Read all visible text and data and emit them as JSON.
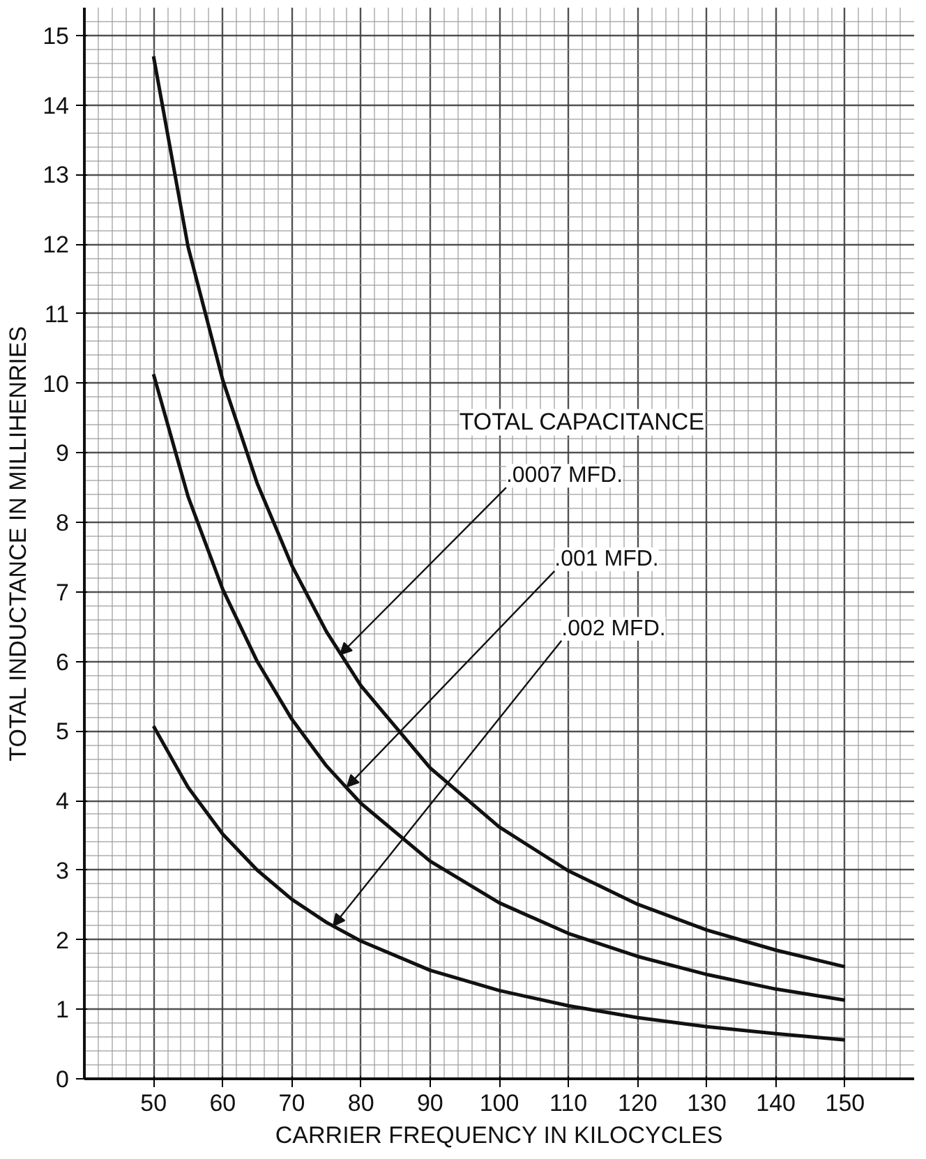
{
  "chart_data": {
    "type": "line",
    "xlabel": "CARRIER FREQUENCY IN KILOCYCLES",
    "ylabel": "TOTAL INDUCTANCE IN MILLIHENRIES",
    "x": [
      50,
      55,
      60,
      65,
      70,
      75,
      80,
      90,
      100,
      110,
      120,
      130,
      140,
      150
    ],
    "series": [
      {
        "color": "#111111",
        "values": [
          14.7,
          11.96,
          10.05,
          8.56,
          7.38,
          6.43,
          5.65,
          4.47,
          3.62,
          2.99,
          2.51,
          2.14,
          1.85,
          1.61
        ]
      },
      {
        "color": "#111111",
        "values": [
          10.13,
          8.37,
          7.04,
          6.0,
          5.17,
          4.5,
          3.96,
          3.13,
          2.53,
          2.09,
          1.76,
          1.5,
          1.29,
          1.13
        ]
      },
      {
        "color": "#111111",
        "values": [
          5.07,
          4.19,
          3.52,
          3.0,
          2.58,
          2.25,
          1.98,
          1.56,
          1.27,
          1.05,
          0.88,
          0.75,
          0.65,
          0.56
        ]
      }
    ],
    "xlim": [
      40,
      160
    ],
    "ylim": [
      0,
      15.4
    ],
    "xticks": [
      50,
      60,
      70,
      80,
      90,
      100,
      110,
      120,
      130,
      140,
      150
    ],
    "yticks": [
      0,
      1,
      2,
      3,
      4,
      5,
      6,
      7,
      8,
      9,
      10,
      11,
      12,
      13,
      14,
      15
    ],
    "grid": true,
    "marker": "none",
    "line_style": "solid",
    "annotations": [
      "TOTAL CAPACITANCE",
      {
        "text": ".0007 MFD.",
        "x": 77,
        "y": 6.1
      },
      {
        "text": ".001 MFD.",
        "x": 78,
        "y": 4.2
      },
      {
        "text": ".002 MFD.",
        "x": 76,
        "y": 2.2
      }
    ]
  }
}
